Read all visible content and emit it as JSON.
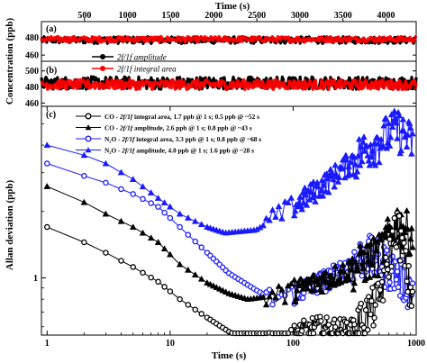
{
  "chart_data": [
    {
      "panel": "(a)",
      "type": "line",
      "x_axis": {
        "label": "Time (s)",
        "ticks": [
          500,
          1000,
          1500,
          2000,
          2500,
          3000,
          3500,
          4000
        ],
        "range": [
          0,
          4350
        ]
      },
      "ylabel": "Concentration (ppb)",
      "y_ticks": [
        460,
        480
      ],
      "ylim": [
        453,
        498
      ],
      "series": [
        {
          "name": "2f/1f amplitude",
          "color": "#000000",
          "marker": "circle",
          "mean": 477,
          "noise": 4
        },
        {
          "name": "2f/1f integral area",
          "color": "#ff0000",
          "marker": "circle",
          "mean": 478,
          "noise": 3
        }
      ],
      "legend": [
        {
          "text": "2f/1f amplitude",
          "color": "#000000",
          "marker": "circle"
        },
        {
          "text": "2f/1f integral area",
          "color": "#ff0000",
          "marker": "circle"
        }
      ]
    },
    {
      "panel": "(b)",
      "type": "line",
      "y_ticks": [
        460,
        480,
        500
      ],
      "ylim": [
        456,
        512
      ],
      "series": [
        {
          "name": "2f/1f amplitude",
          "color": "#000000",
          "marker": "circle",
          "mean": 485,
          "noise": 8
        },
        {
          "name": "2f/1f integral area",
          "color": "#ff0000",
          "marker": "circle",
          "mean": 483,
          "noise": 6
        }
      ]
    },
    {
      "panel": "(c)",
      "type": "line",
      "scale": "log-log",
      "xlabel": "Time (s)",
      "ylabel": "Allan deviation (ppb)",
      "x_ticks": [
        1,
        10,
        100,
        1000
      ],
      "x_tick_labels": [
        "1",
        "10",
        "100",
        "1000"
      ],
      "xlim": [
        0.9,
        1000
      ],
      "y_ticks": [
        1
      ],
      "y_tick_labels": [
        "1"
      ],
      "ylim": [
        0.55,
        6.0
      ],
      "series": [
        {
          "name": "CO - 2f/1f integral area, 1.7 ppb @ 1 s; 0.5 ppb @ ~52 s",
          "color": "#000000",
          "marker": "circle-open",
          "x": [
            1,
            2,
            3,
            5,
            8,
            12,
            20,
            30,
            52,
            80,
            150,
            300,
            500,
            700,
            900
          ],
          "y": [
            1.7,
            1.45,
            1.3,
            1.12,
            0.96,
            0.8,
            0.66,
            0.57,
            0.5,
            0.52,
            0.6,
            0.58,
            0.8,
            1.8,
            0.85
          ]
        },
        {
          "name": "CO - 2f/1f amplitude, 2.6 ppb @ 1 s; 0.8 ppb @ ~43 s",
          "color": "#000000",
          "marker": "triangle",
          "x": [
            1,
            2,
            3,
            5,
            8,
            12,
            20,
            30,
            43,
            80,
            150,
            300,
            500,
            700,
            900
          ],
          "y": [
            2.6,
            2.2,
            1.95,
            1.7,
            1.45,
            1.15,
            0.95,
            0.85,
            0.8,
            0.84,
            0.95,
            1.1,
            1.3,
            1.8,
            1.6
          ]
        },
        {
          "name": "N2O - 2f/1f integral area, 3.3 ppb @ 1 s; 0.8 ppb @ ~68 s",
          "color": "#1a1aff",
          "marker": "circle-open",
          "x": [
            1,
            2,
            3,
            5,
            8,
            12,
            20,
            30,
            50,
            68,
            100,
            200,
            400,
            700,
            900
          ],
          "y": [
            3.3,
            2.9,
            2.7,
            2.4,
            2.1,
            1.7,
            1.3,
            1.05,
            0.88,
            0.8,
            0.85,
            1.0,
            1.3,
            1.05,
            0.9
          ]
        },
        {
          "name": "N2O - 2f/1f amplitude, 4.0 ppb @ 1 s; 1.6 ppb @ ~28 s",
          "color": "#1a1aff",
          "marker": "triangle",
          "x": [
            1,
            2,
            3,
            5,
            8,
            12,
            20,
            28,
            50,
            100,
            200,
            400,
            700,
            900
          ],
          "y": [
            4.0,
            3.6,
            3.3,
            2.8,
            2.3,
            1.95,
            1.7,
            1.6,
            1.65,
            2.1,
            2.8,
            3.9,
            4.8,
            4.2
          ]
        }
      ],
      "legend": [
        {
          "prefix": "CO - ",
          "mode": "2f/1f",
          "rest": " integral area, 1.7 ppb @ 1 s; 0.5 ppb @ ~52 s",
          "color": "#000000",
          "marker": "circle-open"
        },
        {
          "prefix": "CO - ",
          "mode": "2f/1f",
          "rest": " amplitude, 2.6 ppb @ 1 s; 0.8 ppb @ ~43 s",
          "color": "#000000",
          "marker": "triangle"
        },
        {
          "prefix": "N₂O - ",
          "mode": "2f/1f",
          "rest": " integral area, 3.3 ppb @ 1 s; 0.8 ppb @ ~68 s",
          "color": "#1a1aff",
          "marker": "circle-open"
        },
        {
          "prefix": "N₂O - ",
          "mode": "2f/1f",
          "rest": " amplitude, 4.0 ppb @ 1 s; 1.6 ppb @ ~28 s",
          "color": "#1a1aff",
          "marker": "triangle"
        }
      ]
    }
  ]
}
